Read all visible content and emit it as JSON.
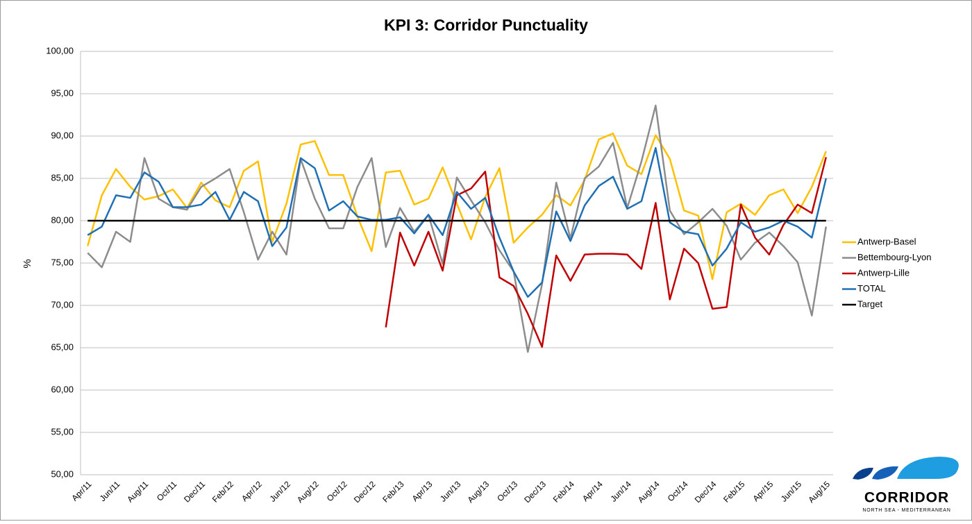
{
  "chart_data": {
    "type": "line",
    "title": "KPI 3: Corridor Punctuality",
    "y_label": "%",
    "categories": [
      "Apr/11",
      null,
      "Jun/11",
      null,
      "Aug/11",
      null,
      "Oct/11",
      null,
      "Dec/11",
      null,
      "Feb/12",
      null,
      "Apr/12",
      null,
      "Jun/12",
      null,
      "Aug/12",
      null,
      "Oct/12",
      null,
      "Dec/12",
      null,
      "Feb/13",
      null,
      "Apr/13",
      null,
      "Jun/13",
      null,
      "Aug/13",
      null,
      "Oct/13",
      null,
      "Dec/13",
      null,
      "Feb/14",
      null,
      "Apr/14",
      null,
      "Jun/14",
      null,
      "Aug/14",
      null,
      "Oct/14",
      null,
      "Dec/14",
      null,
      "Feb/15",
      null,
      "Apr/15",
      null,
      "Jun/15",
      null,
      "Aug/15"
    ],
    "series": [
      {
        "name": "Antwerp-Basel",
        "color": "#ffc000",
        "values": [
          77.0,
          83.0,
          86.1,
          84.0,
          82.5,
          82.9,
          83.7,
          81.5,
          84.5,
          82.4,
          81.6,
          85.9,
          87.0,
          77.5,
          82.0,
          89.0,
          89.4,
          85.4,
          85.4,
          80.5,
          76.4,
          85.7,
          85.9,
          81.9,
          82.6,
          86.3,
          82.0,
          77.8,
          82.8,
          86.2,
          77.4,
          79.2,
          80.7,
          83.0,
          81.8,
          84.8,
          89.6,
          90.3,
          86.5,
          85.5,
          90.1,
          87.3,
          81.2,
          80.6,
          73.1,
          81.0,
          82.0,
          80.7,
          83.0,
          83.7,
          80.9,
          84.0,
          88.2
        ]
      },
      {
        "name": "Bettembourg-Lyon",
        "color": "#8c8c8c",
        "values": [
          76.2,
          74.5,
          78.7,
          77.5,
          87.4,
          82.6,
          81.6,
          81.3,
          84.0,
          85.0,
          86.1,
          81.0,
          75.4,
          78.7,
          76.0,
          87.3,
          82.6,
          79.1,
          79.1,
          84.0,
          87.4,
          76.9,
          81.5,
          78.7,
          80.7,
          74.9,
          85.1,
          82.4,
          79.8,
          76.5,
          74.0,
          64.5,
          72.5,
          84.5,
          77.9,
          85.0,
          86.4,
          89.2,
          81.5,
          87.0,
          93.6,
          81.2,
          78.4,
          79.8,
          81.4,
          79.4,
          75.4,
          77.4,
          78.6,
          77.0,
          75.1,
          68.8,
          79.3
        ]
      },
      {
        "name": "Antwerp-Lille",
        "color": "#c00000",
        "values": [
          null,
          null,
          null,
          null,
          null,
          null,
          null,
          null,
          null,
          null,
          null,
          null,
          null,
          null,
          null,
          null,
          null,
          null,
          null,
          null,
          null,
          67.4,
          78.6,
          74.7,
          78.7,
          74.1,
          83.0,
          83.8,
          85.8,
          73.3,
          72.3,
          69.0,
          65.1,
          75.9,
          72.9,
          76.0,
          76.1,
          76.1,
          76.0,
          74.3,
          82.1,
          70.7,
          76.7,
          75.0,
          69.6,
          69.8,
          81.9,
          78.0,
          76.0,
          79.5,
          81.9,
          80.9,
          87.5
        ]
      },
      {
        "name": "TOTAL",
        "color": "#1f6fb4",
        "values": [
          78.3,
          79.3,
          83.0,
          82.7,
          85.7,
          84.6,
          81.6,
          81.6,
          81.9,
          83.4,
          80.1,
          83.4,
          82.3,
          77.0,
          79.2,
          87.4,
          86.2,
          81.2,
          82.3,
          80.5,
          80.1,
          80.1,
          80.4,
          78.5,
          80.7,
          78.3,
          83.4,
          81.4,
          82.7,
          78.0,
          74.0,
          71.0,
          72.7,
          81.1,
          77.6,
          81.8,
          84.1,
          85.2,
          81.4,
          82.3,
          88.6,
          79.8,
          78.7,
          78.4,
          74.7,
          76.7,
          79.8,
          78.7,
          79.2,
          80.0,
          79.3,
          78.0,
          85.0
        ]
      },
      {
        "name": "Target",
        "color": "#000000",
        "values": [
          80,
          80,
          80,
          80,
          80,
          80,
          80,
          80,
          80,
          80,
          80,
          80,
          80,
          80,
          80,
          80,
          80,
          80,
          80,
          80,
          80,
          80,
          80,
          80,
          80,
          80,
          80,
          80,
          80,
          80,
          80,
          80,
          80,
          80,
          80,
          80,
          80,
          80,
          80,
          80,
          80,
          80,
          80,
          80,
          80,
          80,
          80,
          80,
          80,
          80,
          80,
          80,
          80
        ]
      }
    ],
    "ylim": [
      50,
      100
    ],
    "yticks": [
      {
        "value": 50,
        "label": "50,00"
      },
      {
        "value": 55,
        "label": "55,00"
      },
      {
        "value": 60,
        "label": "60,00"
      },
      {
        "value": 65,
        "label": "65,00"
      },
      {
        "value": 70,
        "label": "70,00"
      },
      {
        "value": 75,
        "label": "75,00"
      },
      {
        "value": 80,
        "label": "80,00"
      },
      {
        "value": 85,
        "label": "85,00"
      },
      {
        "value": 90,
        "label": "90,00"
      },
      {
        "value": 95,
        "label": "95,00"
      },
      {
        "value": 100,
        "label": "100,00"
      }
    ],
    "grid": true,
    "legend": "right"
  },
  "logo": {
    "name": "CORRIDOR",
    "tagline": "NORTH SEA - MEDITERRANEAN"
  }
}
